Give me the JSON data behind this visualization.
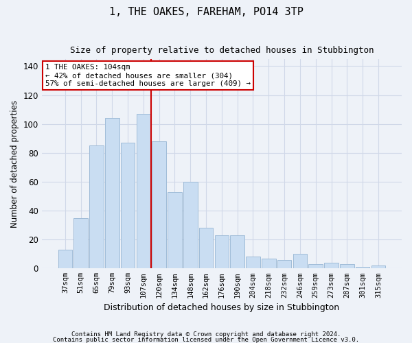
{
  "title1": "1, THE OAKES, FAREHAM, PO14 3TP",
  "title2": "Size of property relative to detached houses in Stubbington",
  "xlabel": "Distribution of detached houses by size in Stubbington",
  "ylabel": "Number of detached properties",
  "categories": [
    "37sqm",
    "51sqm",
    "65sqm",
    "79sqm",
    "93sqm",
    "107sqm",
    "120sqm",
    "134sqm",
    "148sqm",
    "162sqm",
    "176sqm",
    "190sqm",
    "204sqm",
    "218sqm",
    "232sqm",
    "246sqm",
    "259sqm",
    "273sqm",
    "287sqm",
    "301sqm",
    "315sqm"
  ],
  "values": [
    13,
    35,
    85,
    104,
    87,
    107,
    88,
    53,
    60,
    28,
    23,
    23,
    8,
    7,
    6,
    10,
    3,
    4,
    3,
    1,
    2
  ],
  "bar_color": "#c9ddf2",
  "bar_edge_color": "#a0bcd8",
  "grid_color": "#d0d8e8",
  "background_color": "#eef2f8",
  "vline_x_index": 5,
  "vline_color": "#cc0000",
  "annotation_text": "1 THE OAKES: 104sqm\n← 42% of detached houses are smaller (304)\n57% of semi-detached houses are larger (409) →",
  "annotation_box_color": "#ffffff",
  "annotation_box_edge": "#cc0000",
  "ylim": [
    0,
    145
  ],
  "yticks": [
    0,
    20,
    40,
    60,
    80,
    100,
    120,
    140
  ],
  "footer1": "Contains HM Land Registry data © Crown copyright and database right 2024.",
  "footer2": "Contains public sector information licensed under the Open Government Licence v3.0."
}
